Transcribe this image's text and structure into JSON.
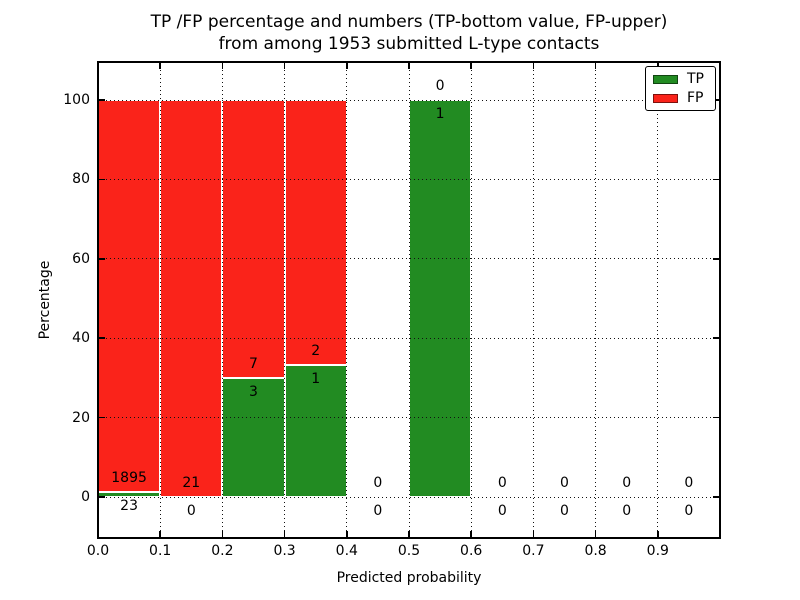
{
  "title": {
    "line1": "TP /FP percentage and numbers (TP-bottom value, FP-upper)",
    "line2": "from among 1953 submitted L-type contacts"
  },
  "chart_data": {
    "type": "bar",
    "stacked": true,
    "units": "percent",
    "title": "TP /FP percentage and numbers (TP-bottom value, FP-upper)\nfrom among 1953 submitted L-type contacts",
    "total_submitted": 1953,
    "xlabel": "Predicted probability",
    "ylabel": "Percentage",
    "bin_edges": [
      0.0,
      0.1,
      0.2,
      0.3,
      0.4,
      0.5,
      0.6,
      0.7,
      0.8,
      0.9,
      1.0
    ],
    "series": [
      {
        "name": "TP",
        "color": "#228b22",
        "counts": [
          23,
          0,
          3,
          1,
          0,
          1,
          0,
          0,
          0,
          0
        ],
        "percent": [
          1.2,
          0,
          30,
          33.3,
          0,
          100,
          0,
          0,
          0,
          0
        ]
      },
      {
        "name": "FP",
        "color": "#fa231a",
        "counts": [
          1895,
          21,
          7,
          2,
          0,
          0,
          0,
          0,
          0,
          0
        ],
        "percent": [
          98.8,
          100,
          70,
          66.7,
          0,
          0,
          0,
          0,
          0,
          0
        ]
      }
    ],
    "annotations": "TP count below segment top, FP count above segment top, for every bin",
    "xticks": [
      "0.0",
      "0.1",
      "0.2",
      "0.3",
      "0.4",
      "0.5",
      "0.6",
      "0.7",
      "0.8",
      "0.9"
    ],
    "yticks": [
      "0",
      "20",
      "40",
      "60",
      "80",
      "100"
    ],
    "xlim": [
      0.0,
      1.0
    ],
    "ylim": [
      -10,
      110
    ],
    "grid": true,
    "grid_style": "dotted",
    "legend": {
      "position": "upper right",
      "entries": [
        "TP",
        "FP"
      ]
    },
    "colors": {
      "tp_green": "#228b22",
      "fp_red": "#fa231a",
      "grid": "#111111",
      "text": "#000000",
      "background": "#ffffff"
    }
  }
}
